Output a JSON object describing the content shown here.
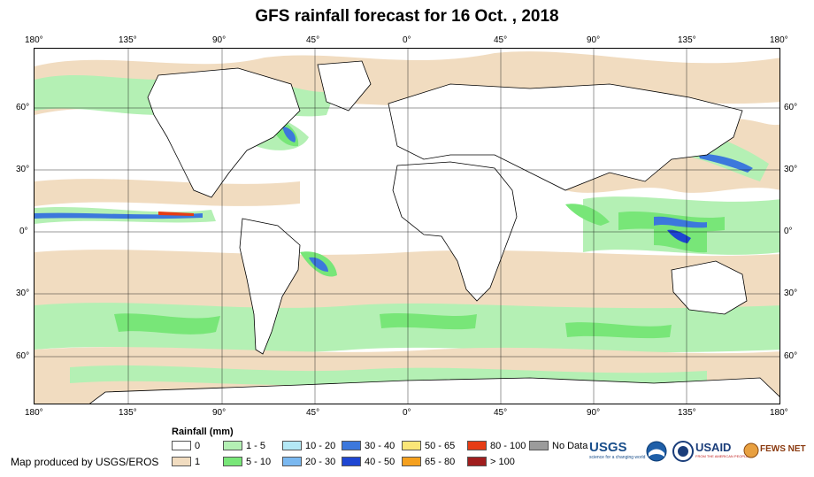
{
  "title": "GFS rainfall forecast for 16 Oct. , 2018",
  "axes": {
    "top_lon": [
      "180°",
      "135°",
      "90°",
      "45°",
      "0°",
      "45°",
      "90°",
      "135°",
      "180°"
    ],
    "bottom_lon": [
      "180°",
      "135°",
      "90°",
      "45°",
      "0°",
      "45°",
      "90°",
      "135°",
      "180°"
    ],
    "left_lat": [
      "60°",
      "30°",
      "0°",
      "30°",
      "60°"
    ],
    "right_lat": [
      "60°",
      "30°",
      "0°",
      "30°",
      "60°"
    ]
  },
  "legend": {
    "title": "Rainfall (mm)",
    "items": [
      {
        "label": "0",
        "color": "#ffffff"
      },
      {
        "label": "1",
        "color": "#f1dcc0"
      },
      {
        "label": "1 - 5",
        "color": "#b4f0b4"
      },
      {
        "label": "5 - 10",
        "color": "#78e678"
      },
      {
        "label": "10 - 20",
        "color": "#b4e8f5"
      },
      {
        "label": "20 - 30",
        "color": "#7ab8f0"
      },
      {
        "label": "30 - 40",
        "color": "#3c78dc"
      },
      {
        "label": "40 - 50",
        "color": "#1e46d2"
      },
      {
        "label": "50 - 65",
        "color": "#fae678"
      },
      {
        "label": "65 - 80",
        "color": "#f5a01e"
      },
      {
        "label": "80 - 100",
        "color": "#e63c14"
      },
      {
        "label": "> 100",
        "color": "#a01e1e"
      },
      {
        "label": "No Data",
        "color": "#9b9b9b"
      }
    ]
  },
  "credit": "Map produced by USGS/EROS",
  "logos": {
    "usgs": "USGS",
    "usgs_tagline": "science for a changing world",
    "usaid": "USAID",
    "usaid_tagline": "FROM THE AMERICAN PEOPLE",
    "fews": "FEWS NET"
  }
}
